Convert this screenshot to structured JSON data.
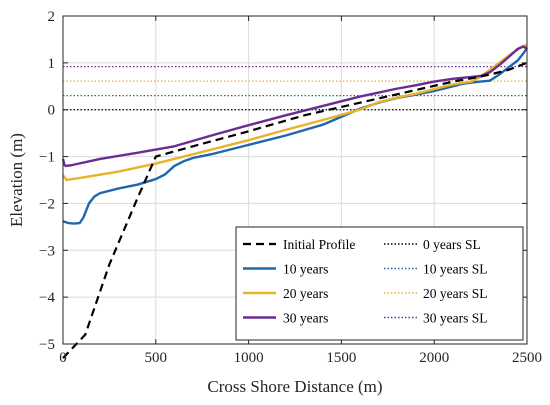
{
  "chart_data": {
    "type": "line",
    "title": "",
    "xlabel": "Cross Shore Distance (m)",
    "ylabel": "Elevation (m)",
    "xlim": [
      0,
      2500
    ],
    "ylim": [
      -5,
      2
    ],
    "xticks": [
      0,
      500,
      1000,
      1500,
      2000,
      2500
    ],
    "yticks": [
      -5,
      -4,
      -3,
      -2,
      -1,
      0,
      1,
      2
    ],
    "grid": true,
    "legend_position": "bottom-right",
    "series": [
      {
        "name": "Initial Profile",
        "style": "dashed",
        "color": "#000000",
        "x": [
          0,
          120,
          250,
          400,
          500,
          700,
          1000,
          1300,
          1500,
          1700,
          1900,
          2100,
          2200,
          2300,
          2400,
          2500
        ],
        "y": [
          -5.3,
          -4.8,
          -3.3,
          -1.9,
          -1.0,
          -0.78,
          -0.46,
          -0.12,
          0.06,
          0.24,
          0.42,
          0.6,
          0.67,
          0.75,
          0.85,
          1.0
        ]
      },
      {
        "name": "10 years",
        "style": "solid",
        "color": "#2166ac",
        "x": [
          0,
          30,
          60,
          90,
          110,
          140,
          170,
          200,
          300,
          400,
          500,
          550,
          600,
          650,
          700,
          800,
          1000,
          1200,
          1400,
          1500,
          1600,
          1700,
          1800,
          1900,
          2000,
          2100,
          2150,
          2200,
          2250,
          2300,
          2350,
          2400,
          2450,
          2480,
          2500
        ],
        "y": [
          -2.38,
          -2.42,
          -2.43,
          -2.42,
          -2.3,
          -2.0,
          -1.85,
          -1.78,
          -1.68,
          -1.6,
          -1.48,
          -1.38,
          -1.2,
          -1.1,
          -1.03,
          -0.95,
          -0.75,
          -0.55,
          -0.32,
          -0.15,
          0.02,
          0.15,
          0.25,
          0.32,
          0.4,
          0.5,
          0.55,
          0.58,
          0.6,
          0.62,
          0.75,
          0.9,
          1.05,
          1.2,
          1.32
        ]
      },
      {
        "name": "20 years",
        "style": "solid",
        "color": "#e8b32a",
        "x": [
          0,
          10,
          20,
          100,
          300,
          500,
          700,
          1000,
          1200,
          1400,
          1600,
          1700,
          1800,
          1900,
          2000,
          2100,
          2200,
          2250,
          2300,
          2350,
          2400,
          2450,
          2480,
          2500
        ],
        "y": [
          -1.4,
          -1.45,
          -1.5,
          -1.45,
          -1.32,
          -1.15,
          -0.95,
          -0.65,
          -0.43,
          -0.22,
          0.0,
          0.16,
          0.26,
          0.34,
          0.44,
          0.54,
          0.6,
          0.7,
          0.85,
          1.0,
          1.15,
          1.28,
          1.36,
          1.38
        ]
      },
      {
        "name": "30 years",
        "style": "solid",
        "color": "#6a2c91",
        "x": [
          0,
          8,
          15,
          50,
          200,
          400,
          600,
          800,
          1000,
          1200,
          1400,
          1600,
          1800,
          1900,
          2000,
          2100,
          2200,
          2250,
          2300,
          2350,
          2400,
          2450,
          2480,
          2500
        ],
        "y": [
          -1.05,
          -1.18,
          -1.2,
          -1.18,
          -1.05,
          -0.92,
          -0.78,
          -0.55,
          -0.33,
          -0.12,
          0.08,
          0.28,
          0.45,
          0.52,
          0.6,
          0.66,
          0.7,
          0.72,
          0.8,
          0.95,
          1.12,
          1.3,
          1.35,
          1.3
        ]
      }
    ],
    "reference_lines": [
      {
        "name": "0 years SL",
        "y": 0.0,
        "style": "dotted",
        "color": "#000000"
      },
      {
        "name": "10 years SL",
        "y": 0.3,
        "style": "dotted",
        "color": "#2166ac"
      },
      {
        "name": "20 years SL",
        "y": 0.61,
        "style": "dotted",
        "color": "#e8b32a"
      },
      {
        "name": "30 years SL",
        "y": 0.92,
        "style": "dotted",
        "color": "#6a2c91"
      }
    ]
  }
}
